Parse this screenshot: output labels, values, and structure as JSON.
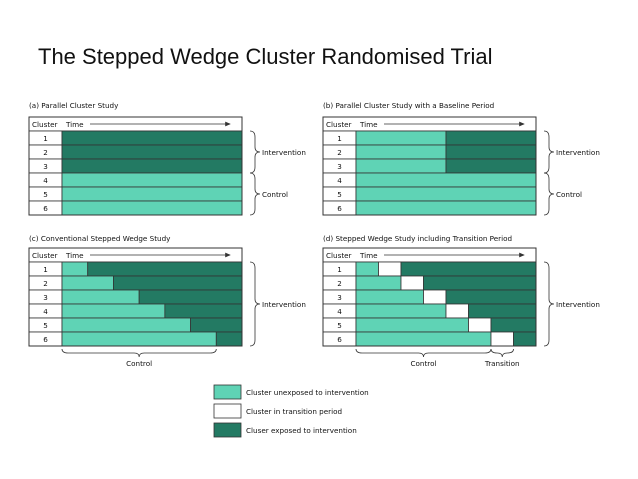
{
  "title": "The Stepped Wedge Cluster Randomised Trial",
  "colors": {
    "unexposed": "#5fd3b5",
    "exposed": "#237a63",
    "transition": "#ffffff",
    "grid": "#333333"
  },
  "headers": {
    "cluster": "Cluster",
    "time": "Time"
  },
  "clusters": [
    "1",
    "2",
    "3",
    "4",
    "5",
    "6"
  ],
  "labels": {
    "intervention": "Intervention",
    "control": "Control",
    "transition": "Transition"
  },
  "panels": [
    {
      "id": "a",
      "title": "(a) Parallel Cluster Study",
      "rows": [
        [
          {
            "s": "exposed",
            "w": 1
          }
        ],
        [
          {
            "s": "exposed",
            "w": 1
          }
        ],
        [
          {
            "s": "exposed",
            "w": 1
          }
        ],
        [
          {
            "s": "unexposed",
            "w": 1
          }
        ],
        [
          {
            "s": "unexposed",
            "w": 1
          }
        ],
        [
          {
            "s": "unexposed",
            "w": 1
          }
        ]
      ]
    },
    {
      "id": "b",
      "title": "(b) Parallel Cluster Study with a Baseline Period",
      "rows": [
        [
          {
            "s": "unexposed",
            "w": 0.5
          },
          {
            "s": "exposed",
            "w": 0.5
          }
        ],
        [
          {
            "s": "unexposed",
            "w": 0.5
          },
          {
            "s": "exposed",
            "w": 0.5
          }
        ],
        [
          {
            "s": "unexposed",
            "w": 0.5
          },
          {
            "s": "exposed",
            "w": 0.5
          }
        ],
        [
          {
            "s": "unexposed",
            "w": 1
          }
        ],
        [
          {
            "s": "unexposed",
            "w": 1
          }
        ],
        [
          {
            "s": "unexposed",
            "w": 1
          }
        ]
      ]
    },
    {
      "id": "c",
      "title": "(c) Conventional Stepped Wedge Study",
      "rows": [
        [
          {
            "s": "unexposed",
            "w": 1
          },
          {
            "s": "exposed",
            "w": 6
          }
        ],
        [
          {
            "s": "unexposed",
            "w": 2
          },
          {
            "s": "exposed",
            "w": 5
          }
        ],
        [
          {
            "s": "unexposed",
            "w": 3
          },
          {
            "s": "exposed",
            "w": 4
          }
        ],
        [
          {
            "s": "unexposed",
            "w": 4
          },
          {
            "s": "exposed",
            "w": 3
          }
        ],
        [
          {
            "s": "unexposed",
            "w": 5
          },
          {
            "s": "exposed",
            "w": 2
          }
        ],
        [
          {
            "s": "unexposed",
            "w": 6
          },
          {
            "s": "exposed",
            "w": 1
          }
        ]
      ]
    },
    {
      "id": "d",
      "title": "(d) Stepped Wedge Study including Transition Period",
      "rows": [
        [
          {
            "s": "unexposed",
            "w": 1
          },
          {
            "s": "transition",
            "w": 1
          },
          {
            "s": "exposed",
            "w": 6
          }
        ],
        [
          {
            "s": "unexposed",
            "w": 2
          },
          {
            "s": "transition",
            "w": 1
          },
          {
            "s": "exposed",
            "w": 5
          }
        ],
        [
          {
            "s": "unexposed",
            "w": 3
          },
          {
            "s": "transition",
            "w": 1
          },
          {
            "s": "exposed",
            "w": 4
          }
        ],
        [
          {
            "s": "unexposed",
            "w": 4
          },
          {
            "s": "transition",
            "w": 1
          },
          {
            "s": "exposed",
            "w": 3
          }
        ],
        [
          {
            "s": "unexposed",
            "w": 5
          },
          {
            "s": "transition",
            "w": 1
          },
          {
            "s": "exposed",
            "w": 2
          }
        ],
        [
          {
            "s": "unexposed",
            "w": 6
          },
          {
            "s": "transition",
            "w": 1
          },
          {
            "s": "exposed",
            "w": 1
          }
        ]
      ]
    }
  ],
  "legend": [
    {
      "state": "unexposed",
      "label": "Cluster unexposed to intervention"
    },
    {
      "state": "transition",
      "label": "Cluster in transition period"
    },
    {
      "state": "exposed",
      "label": "Cluser exposed to intervention"
    }
  ]
}
